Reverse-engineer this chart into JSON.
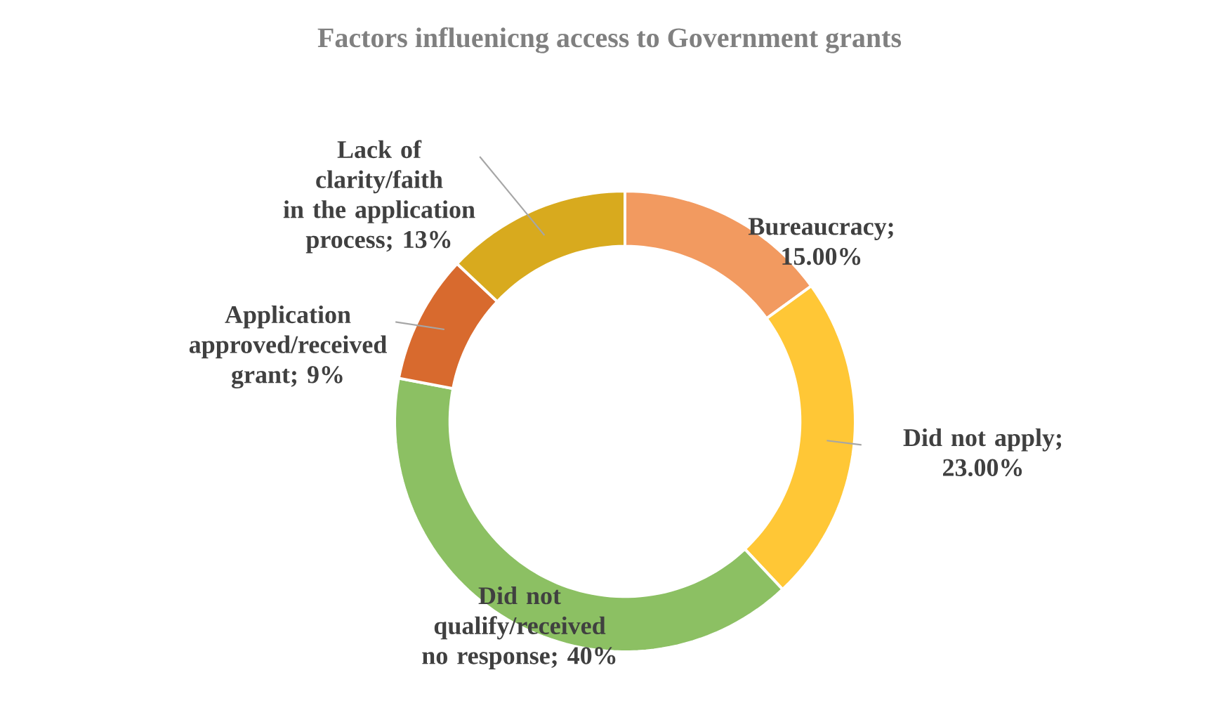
{
  "chart_data": {
    "type": "donut",
    "title": "Factors influenicng access to Government grants",
    "categories": [
      "Bureaucracy",
      "Did not apply",
      "Did not qualify/received no response",
      "Application approved/received grant",
      "Lack of clarity/faith in the application process"
    ],
    "values": [
      15,
      23,
      40,
      9,
      13
    ],
    "value_labels": [
      "; 15.00%",
      "; 23.00%",
      "; 40%",
      "; 9%",
      "; 13%"
    ],
    "colors": [
      "#f29a60",
      "#ffc736",
      "#8cc063",
      "#d86a2e",
      "#d8aa1e"
    ]
  }
}
